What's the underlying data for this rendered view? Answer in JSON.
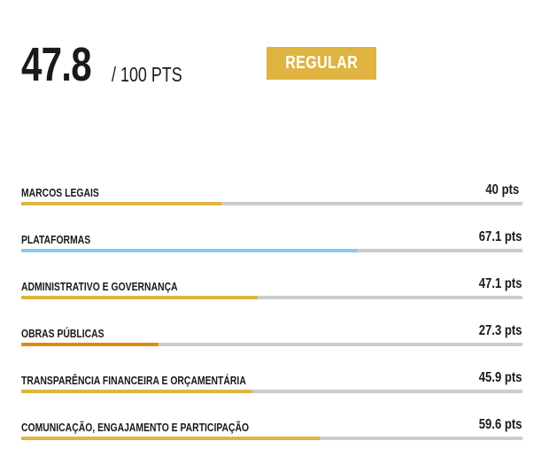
{
  "score": {
    "value": "47.8",
    "max_label": "/ 100 PTS"
  },
  "rating": {
    "label": "REGULAR",
    "color": "#dfb441"
  },
  "colors": {
    "track": "#cccccc",
    "gold": "#dfb441",
    "blue": "#88cbeb",
    "orange": "#e08a14"
  },
  "categories": [
    {
      "label": "MARCOS LEGAIS",
      "points_label": "40 pts",
      "score": 40,
      "color": "#dfb441"
    },
    {
      "label": "PLATAFORMAS",
      "points_label": "67.1 pts",
      "score": 67.1,
      "color": "#88cbeb"
    },
    {
      "label": "ADMINISTRATIVO E GOVERNANÇA",
      "points_label": "47.1 pts",
      "score": 47.1,
      "color": "#dfb441"
    },
    {
      "label": "OBRAS PÚBLICAS",
      "points_label": "27.3 pts",
      "score": 27.3,
      "color": "#e08a14"
    },
    {
      "label": "TRANSPARÊNCIA FINANCEIRA E ORÇAMENTÁRIA",
      "points_label": "45.9 pts",
      "score": 45.9,
      "color": "#dfb441"
    },
    {
      "label": "COMUNICAÇÃO, ENGAJAMENTO E PARTICIPAÇÃO",
      "points_label": "59.6 pts",
      "score": 59.6,
      "color": "#dfb441"
    }
  ]
}
